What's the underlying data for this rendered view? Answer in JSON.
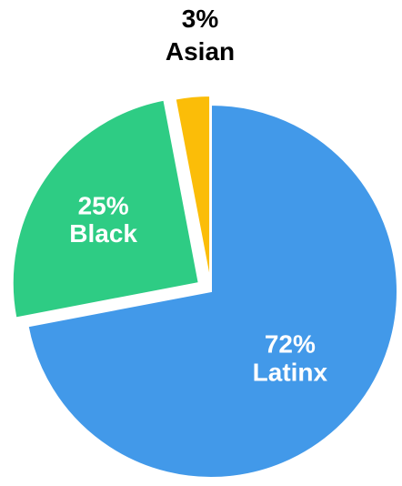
{
  "chart_data": {
    "type": "pie",
    "slices": [
      {
        "label": "Latinx",
        "value": 72,
        "value_label": "72%",
        "color": "#4299e9",
        "label_color": "#ffffff"
      },
      {
        "label": "Black",
        "value": 25,
        "value_label": "25%",
        "color": "#2ecc84",
        "label_color": "#ffffff"
      },
      {
        "label": "Asian",
        "value": 3,
        "value_label": "3%",
        "color": "#fbbd08",
        "label_color": "#000000"
      }
    ],
    "legend": "none",
    "exploded": true
  }
}
